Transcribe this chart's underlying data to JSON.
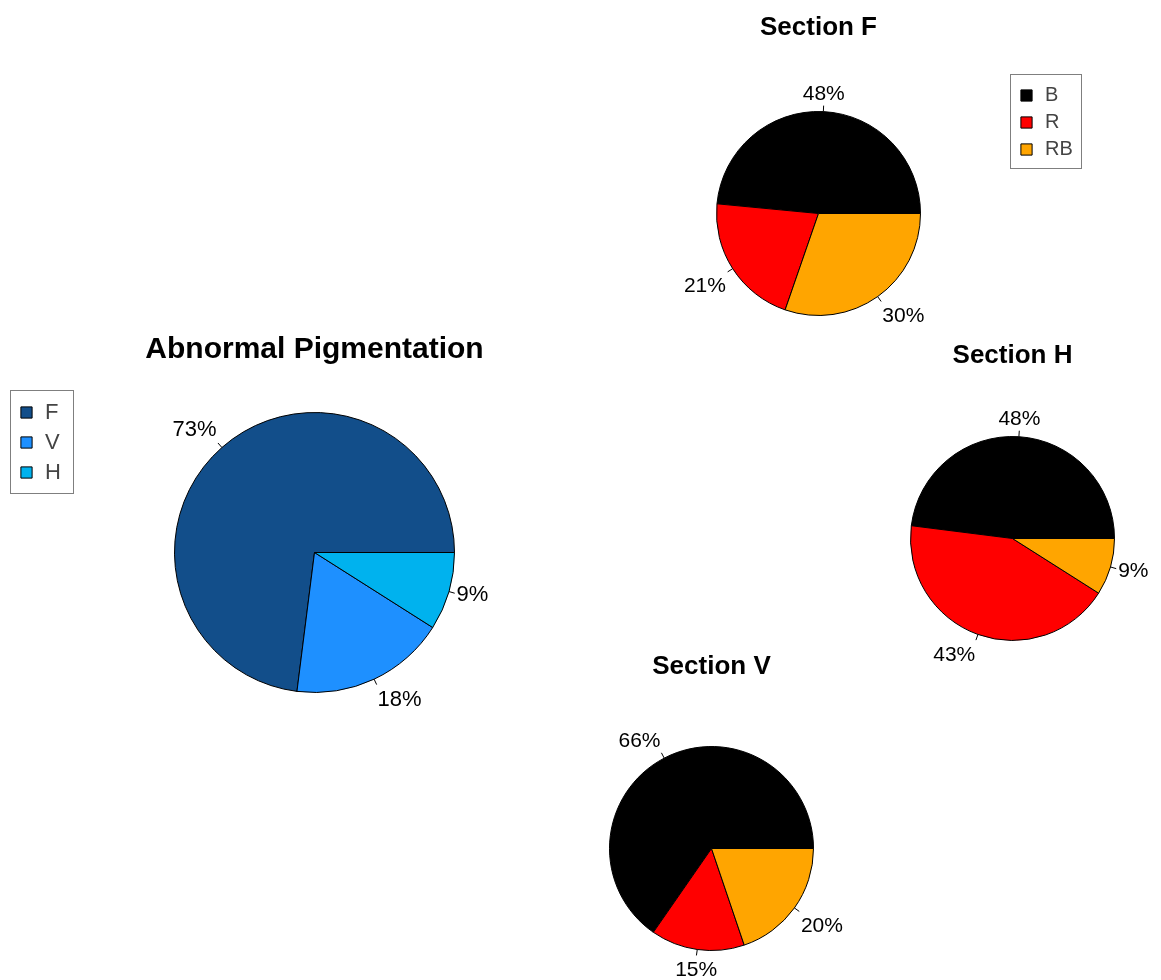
{
  "chart_data": [
    {
      "type": "pie",
      "title": "Abnormal Pigmentation",
      "categories": [
        "F",
        "V",
        "H"
      ],
      "values": [
        73,
        18,
        9
      ],
      "colors": [
        "#124e8a",
        "#1e90ff",
        "#00b2ee"
      ],
      "value_labels": [
        "73%",
        "18%",
        "9%"
      ],
      "legend": "left"
    },
    {
      "type": "pie",
      "title": "Section F",
      "categories": [
        "B",
        "R",
        "RB"
      ],
      "values": [
        48,
        21,
        30
      ],
      "colors": [
        "#000000",
        "#ff0000",
        "#ffa500"
      ],
      "value_labels": [
        "48%",
        "21%",
        "30%"
      ],
      "legend": "top right"
    },
    {
      "type": "pie",
      "title": "Section H",
      "categories": [
        null,
        null,
        null
      ],
      "values": [
        48,
        43,
        9
      ],
      "colors": [
        "#000000",
        "#ff0000",
        "#ffa500"
      ],
      "value_labels": [
        "48%",
        "43%",
        "9%"
      ],
      "legend": false
    },
    {
      "type": "pie",
      "title": "Section V",
      "categories": [
        null,
        null,
        null
      ],
      "values": [
        66,
        15,
        20
      ],
      "colors": [
        "#000000",
        "#ff0000",
        "#ffa500"
      ],
      "value_labels": [
        "66%",
        "15%",
        "20%"
      ],
      "legend": false
    }
  ]
}
